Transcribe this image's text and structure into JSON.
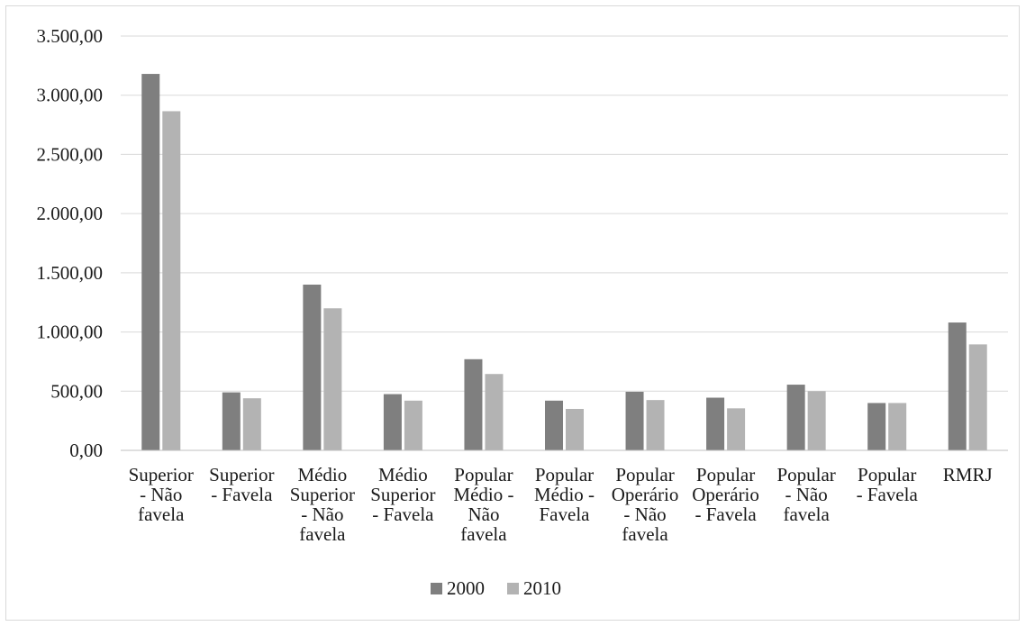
{
  "chart_data": {
    "type": "bar",
    "title": "",
    "xlabel": "",
    "ylabel": "",
    "ylim": [
      0,
      3500
    ],
    "y_ticks": [
      0,
      500,
      1000,
      1500,
      2000,
      2500,
      3000,
      3500
    ],
    "y_tick_labels": [
      "0,00",
      "500,00",
      "1.000,00",
      "1.500,00",
      "2.000,00",
      "2.500,00",
      "3.000,00",
      "3.500,00"
    ],
    "grid": true,
    "legend_position": "bottom",
    "categories": [
      "Superior - Não favela",
      "Superior - Favela",
      "Médio Superior - Não favela",
      "Médio Superior - Favela",
      "Popular Médio - Não favela",
      "Popular Médio - Favela",
      "Popular Operário - Não favela",
      "Popular Operário - Favela",
      "Popular - Não favela",
      "Popular - Favela",
      "RMRJ"
    ],
    "category_label_lines": [
      [
        "Superior",
        "- Não",
        "favela"
      ],
      [
        "Superior",
        "- Favela"
      ],
      [
        "Médio",
        "Superior",
        "- Não",
        "favela"
      ],
      [
        "Médio",
        "Superior",
        "- Favela"
      ],
      [
        "Popular",
        "Médio -",
        "Não",
        "favela"
      ],
      [
        "Popular",
        "Médio -",
        "Favela"
      ],
      [
        "Popular",
        "Operário",
        "- Não",
        "favela"
      ],
      [
        "Popular",
        "Operário",
        "- Favela"
      ],
      [
        "Popular",
        "- Não",
        "favela"
      ],
      [
        "Popular",
        "- Favela"
      ],
      [
        "RMRJ"
      ]
    ],
    "series": [
      {
        "name": "2000",
        "color": "#7f7f7f",
        "values": [
          3180,
          490,
          1400,
          475,
          770,
          420,
          495,
          445,
          555,
          400,
          1080
        ]
      },
      {
        "name": "2010",
        "color": "#b3b3b3",
        "values": [
          2865,
          440,
          1200,
          420,
          645,
          350,
          425,
          355,
          500,
          400,
          895
        ]
      }
    ]
  }
}
